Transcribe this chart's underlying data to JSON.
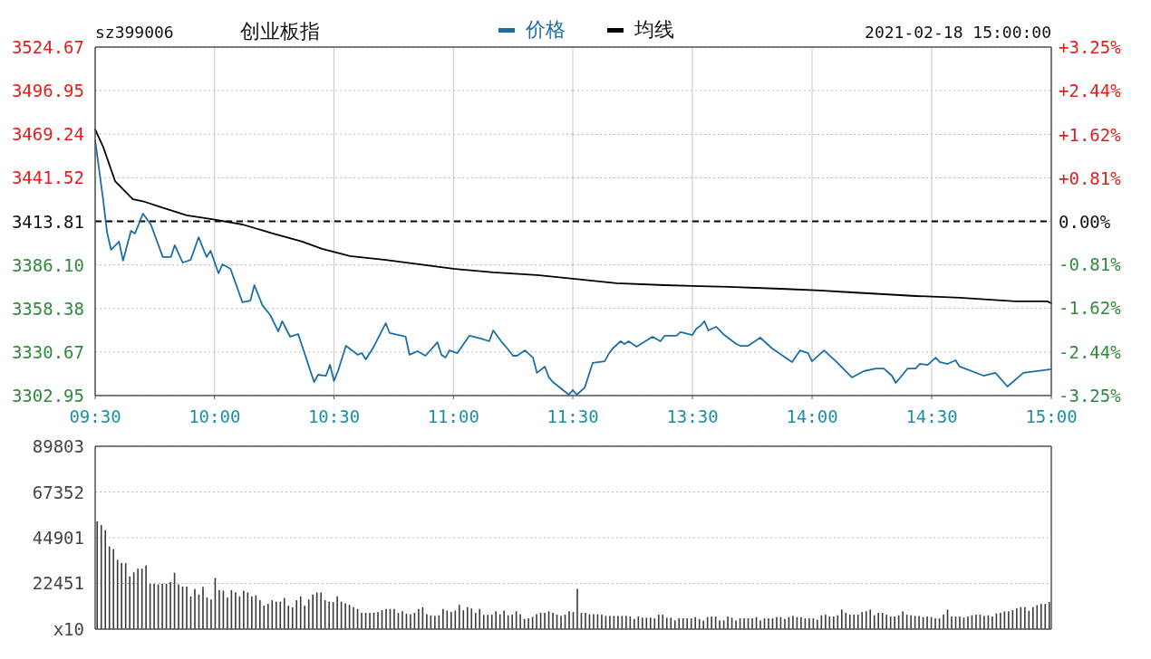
{
  "chart_data": [
    {
      "type": "line",
      "title": "创业板指",
      "annotations": [
        "sz399006"
      ],
      "legend": "top",
      "grid": true,
      "tick_labels": true,
      "xlim": [
        9.5,
        11.5
      ],
      "xticks": [
        {
          "value": 9.5,
          "label": "09:30"
        },
        {
          "value": 10,
          "label": "10:00"
        },
        {
          "value": 10.5,
          "label": "10:30"
        },
        {
          "value": 11,
          "label": "11:00"
        },
        {
          "value": 11.5,
          "label": "11:30"
        }
      ],
      "ylim": [
        3302.95,
        3524.67
      ],
      "yticks": [
        3524.67,
        3496.95,
        3469.24,
        3441.52,
        3413.81,
        {
          "value": 3386.1,
          "label": "3386.10"
        },
        3358.38,
        3330.67,
        3302.95
      ],
      "ref_lines": [
        {
          "axis": "y",
          "value": 3413.81,
          "color": "#000000",
          "line_style": "dashed"
        }
      ],
      "series": [
        {
          "name": "价格",
          "color": "#1b6fa6",
          "x": [
            9.5,
            9.5333,
            9.55,
            9.5667,
            9.6,
            9.6167,
            9.65,
            9.6667,
            9.7,
            9.7333,
            9.7833,
            9.8167,
            9.8333,
            9.8667,
            9.9,
            9.9333,
            9.9667,
            9.9833,
            10.0167,
            10.0333,
            10.0667,
            10.1167,
            10.15,
            10.1667,
            10.2,
            10.2333,
            10.2667,
            10.2833,
            10.3167,
            10.35,
            10.4167,
            10.4333,
            10.4667,
            10.4833,
            10.5,
            10.5167,
            10.55,
            10.6,
            10.6167,
            10.6333,
            10.6667,
            10.7167,
            10.7333,
            10.8,
            10.8167,
            10.85,
            10.8833,
            10.9333,
            10.95,
            10.9667,
            10.9833,
            11.0167,
            11.0667,
            11.1167,
            11.15,
            11.1667,
            11.2,
            11.2167,
            11.25,
            11.2667,
            11.3,
            11.3333,
            11.35,
            11.3833,
            11.4,
            11.4167,
            11.4833,
            11.5
          ],
          "values": [
            3465.4,
            3427.9,
            3406.6,
            3395.7,
            3400.9,
            3388.8,
            3407.8,
            3406.0,
            3418.7,
            3411.8,
            3391.1,
            3391.1,
            3398.6,
            3387.6,
            3389.3,
            3403.7,
            3391.1,
            3395.1,
            3380.7,
            3386.5,
            3383.6,
            3362.3,
            3363.4,
            3373.2,
            3360.5,
            3354.2,
            3343.8,
            3350.2,
            3340.4,
            3342.1,
            3311.6,
            3316.2,
            3315.6,
            3322.5,
            3312.2,
            3318.5,
            3334.6,
            3328.9,
            3330.0,
            3326.0,
            3334.1,
            3349.0,
            3342.7,
            3340.4,
            3328.9,
            3331.2,
            3328.3,
            3336.9,
            3328.9,
            3327.1,
            3331.7,
            3330.0,
            3341.0,
            3339.2,
            3337.5,
            3344.4,
            3337.5,
            3334.6,
            3328.3,
            3328.3,
            3331.7,
            3327.1,
            3317.4,
            3321.4,
            3314.5,
            3311.6,
            3303.5,
            3306.4
          ]
        },
        {
          "name": "均线",
          "color": "#000000",
          "x": [
            9.5,
            9.5333,
            9.5833,
            9.6583,
            9.7083,
            9.7667,
            9.8833,
            9.9833,
            10.1167,
            10.2333,
            10.3667,
            10.45,
            10.5667,
            10.7167,
            10.8833,
            11.0,
            11.1667,
            11.35,
            11.5
          ],
          "values": [
            3472.3,
            3461.3,
            3439.4,
            3427.9,
            3426.2,
            3423.3,
            3417.6,
            3415.3,
            3411.8,
            3406.6,
            3400.9,
            3396.3,
            3391.7,
            3389.3,
            3385.9,
            3383.6,
            3381.3,
            3379.6,
            3377.3
          ]
        }
      ]
    },
    {
      "type": "line",
      "annotations": [
        "2021-02-18 15:00:00"
      ],
      "grid": true,
      "tick_labels": "x",
      "xlim": [
        13,
        15
      ],
      "xticks": [
        {
          "value": 13.5,
          "label": "13:30"
        },
        {
          "value": 14,
          "label": "14:00"
        },
        {
          "value": 14.5,
          "label": "14:30"
        },
        {
          "value": 15,
          "label": "15:00"
        }
      ],
      "ylim": [
        3302.95,
        3524.67
      ],
      "y2lim": [
        -3.25,
        3.25
      ],
      "y2ticks": [
        {
          "value": 3.25,
          "label": "+3.25%"
        },
        {
          "value": 2.44,
          "label": "+2.44%"
        },
        {
          "value": 1.62,
          "label": "+1.62%"
        },
        {
          "value": 0.81,
          "label": "+0.81%"
        },
        {
          "value": 0,
          "label": "0.00%"
        },
        {
          "value": -0.81,
          "label": "-0.81%"
        },
        {
          "value": -1.62,
          "label": "-1.62%"
        },
        {
          "value": -2.44,
          "label": "-2.44%"
        },
        {
          "value": -3.25,
          "label": "-3.25%"
        }
      ],
      "ref_lines": [
        {
          "axis": "y",
          "value": 3413.81,
          "color": "#000000",
          "line_style": "dashed"
        }
      ],
      "series": [
        {
          "color": "#1b6fa6",
          "x": [
            13.0,
            13.0167,
            13.05,
            13.0833,
            13.1333,
            13.15,
            13.1667,
            13.2,
            13.2167,
            13.2333,
            13.2667,
            13.3333,
            13.3667,
            13.3833,
            13.4333,
            13.45,
            13.4667,
            13.5,
            13.5167,
            13.5333,
            13.55,
            13.5667,
            13.6,
            13.6333,
            13.6833,
            13.7,
            13.7333,
            13.7833,
            13.8333,
            13.8667,
            13.9167,
            13.95,
            13.9833,
            14.0,
            14.05,
            14.1,
            14.1667,
            14.2167,
            14.2667,
            14.3,
            14.3333,
            14.35,
            14.4,
            14.4333,
            14.45,
            14.4833,
            14.5167,
            14.5333,
            14.5667,
            14.6,
            14.6167,
            14.7167,
            14.7667,
            14.8167,
            14.8833,
            15.0
          ],
          "values": [
            3306.4,
            3303.5,
            3308.1,
            3323.7,
            3324.8,
            3329.4,
            3332.9,
            3337.5,
            3335.8,
            3337.5,
            3334.1,
            3340.4,
            3337.5,
            3341.0,
            3341.0,
            3343.3,
            3342.7,
            3341.5,
            3345.6,
            3347.3,
            3350.2,
            3344.4,
            3346.7,
            3341.5,
            3335.8,
            3334.6,
            3334.6,
            3339.8,
            3332.9,
            3329.4,
            3324.3,
            3331.7,
            3330.0,
            3324.8,
            3331.7,
            3324.8,
            3314.5,
            3318.5,
            3320.2,
            3320.2,
            3315.6,
            3311.0,
            3320.2,
            3320.2,
            3323.1,
            3322.5,
            3327.1,
            3324.3,
            3323.1,
            3325.4,
            3321.4,
            3315.6,
            3317.4,
            3308.7,
            3317.4,
            3319.7
          ]
        },
        {
          "color": "#000000",
          "x": [
            13.0,
            13.1833,
            13.3833,
            13.65,
            13.8667,
            14.0333,
            14.1667,
            14.4333,
            14.6167,
            14.85,
            14.9833,
            15.0
          ],
          "values": [
            3377.3,
            3374.4,
            3373.2,
            3372.1,
            3370.9,
            3369.8,
            3368.6,
            3366.3,
            3365.2,
            3362.9,
            3362.9,
            3361.7
          ]
        }
      ]
    },
    {
      "type": "bar",
      "grid": "y",
      "tick_labels": "y",
      "color": "#3a3a3a",
      "ylim": [
        0,
        89803
      ],
      "yticks": [
        89803,
        67352,
        44901,
        22451,
        {
          "value": 0,
          "label": "x10"
        }
      ],
      "categories": [
        null,
        null,
        null,
        null,
        null,
        null,
        null,
        null,
        null,
        null,
        null,
        null,
        null,
        null,
        null,
        null,
        null,
        null,
        null,
        null,
        null,
        null,
        null,
        null,
        null,
        null,
        null,
        null,
        null,
        null,
        null,
        null,
        null,
        null,
        null,
        null,
        null,
        null,
        null,
        null,
        null,
        null,
        null,
        null,
        null,
        null,
        null,
        null,
        null,
        null,
        null,
        null,
        null,
        null,
        null,
        null,
        null,
        null,
        null,
        null,
        null,
        null,
        null,
        null,
        null,
        null,
        null,
        null,
        null,
        null,
        null,
        null,
        null,
        null,
        null,
        null,
        null,
        null,
        null,
        null,
        null,
        null,
        null,
        null,
        null,
        null,
        null,
        null,
        null,
        null,
        null,
        null,
        null,
        null,
        null,
        null,
        null,
        null,
        null,
        null,
        null,
        null,
        null,
        null,
        null,
        null,
        null,
        null,
        null,
        null,
        null,
        null,
        null,
        null,
        null,
        null,
        null,
        null,
        null,
        null,
        null,
        null,
        null,
        null,
        null,
        null,
        null,
        null,
        null,
        null,
        null,
        null,
        null,
        null,
        null,
        null,
        null,
        null,
        null,
        null,
        null,
        null,
        null,
        null,
        null,
        null,
        null,
        null,
        null,
        null,
        null,
        null,
        null,
        null,
        null,
        null,
        null,
        null,
        null,
        null,
        null,
        null,
        null,
        null,
        null,
        null,
        null,
        null,
        null,
        null,
        null,
        null,
        null,
        null,
        null,
        null,
        null,
        null,
        null,
        null,
        null,
        null,
        null,
        null,
        null,
        null,
        null,
        null,
        null,
        null,
        null,
        null,
        null,
        null,
        null,
        null,
        null,
        null,
        null,
        null,
        null,
        null,
        null,
        null,
        null,
        null,
        null,
        null,
        null,
        null,
        null,
        null,
        null,
        null,
        null,
        null,
        null,
        null,
        null,
        null,
        null,
        null,
        null,
        null,
        null,
        null,
        null,
        null,
        null,
        null,
        null,
        null,
        null,
        null,
        null
      ],
      "values": [
        52900,
        51100,
        48600,
        40600,
        39300,
        34100,
        32500,
        32400,
        25900,
        27900,
        29700,
        29700,
        31300,
        22300,
        22300,
        22000,
        22300,
        22300,
        23200,
        27700,
        22000,
        20900,
        20900,
        16100,
        19700,
        17000,
        20700,
        15500,
        14600,
        25100,
        19200,
        18900,
        15500,
        19200,
        18100,
        16100,
        18900,
        18000,
        16100,
        16600,
        14200,
        11500,
        12400,
        14200,
        13500,
        13500,
        15300,
        11500,
        10700,
        14200,
        16100,
        11500,
        14600,
        17000,
        18000,
        18000,
        14200,
        13500,
        13300,
        16100,
        13500,
        12700,
        11900,
        10800,
        9900,
        8000,
        8000,
        8000,
        8000,
        8400,
        9300,
        9900,
        9900,
        9900,
        8000,
        8800,
        7600,
        7300,
        8000,
        9900,
        10800,
        7300,
        6800,
        6500,
        6800,
        9900,
        9100,
        8500,
        9100,
        11900,
        9300,
        10800,
        10100,
        8000,
        9900,
        7000,
        7000,
        7100,
        8800,
        7300,
        9100,
        6800,
        7100,
        8800,
        7300,
        5000,
        5300,
        6000,
        7300,
        8000,
        8000,
        8800,
        8000,
        7100,
        6500,
        7100,
        8800,
        8400,
        19800,
        8000,
        8000,
        7300,
        7300,
        7300,
        7100,
        6500,
        6500,
        6500,
        6500,
        6500,
        6500,
        6200,
        5000,
        6200,
        5600,
        5600,
        5600,
        5300,
        7100,
        7100,
        5600,
        5600,
        4300,
        5300,
        5300,
        5300,
        5300,
        5900,
        5000,
        4200,
        5900,
        6200,
        6200,
        4300,
        4300,
        6200,
        5600,
        4300,
        5300,
        5300,
        5300,
        5300,
        5900,
        4300,
        5300,
        5300,
        5300,
        5900,
        5900,
        5000,
        5900,
        6500,
        5900,
        5900,
        5300,
        5300,
        5300,
        4600,
        6800,
        7100,
        6200,
        6200,
        6800,
        9600,
        8000,
        7100,
        7100,
        7100,
        8400,
        8800,
        9600,
        6800,
        8000,
        8000,
        7100,
        6200,
        6200,
        6800,
        8700,
        7100,
        6800,
        6500,
        6500,
        5900,
        6200,
        5900,
        5300,
        5300,
        7100,
        9600,
        6200,
        6200,
        6200,
        5600,
        6200,
        6800,
        7100,
        7100,
        6500,
        6800,
        6200,
        7700,
        8000,
        8700,
        8700,
        9300,
        10200,
        10800,
        10800,
        9000,
        10800,
        11800,
        12400,
        12400,
        13300
      ]
    }
  ]
}
